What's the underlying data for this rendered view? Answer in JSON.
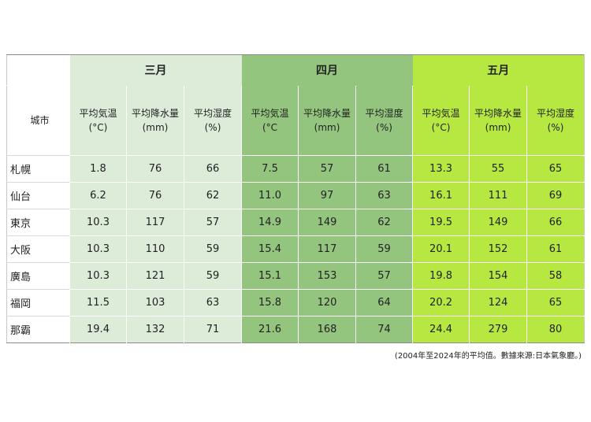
{
  "table": {
    "city_header": "城市",
    "months": [
      {
        "name": "三月",
        "color": "#dcecd9"
      },
      {
        "name": "四月",
        "color": "#94c57e"
      },
      {
        "name": "五月",
        "color": "#b7e842"
      }
    ],
    "column_headers": [
      [
        "平均気温",
        "(°C)"
      ],
      [
        "平均降水量",
        "(mm)"
      ],
      [
        "平均湿度",
        "(%)"
      ],
      [
        "平均気温",
        "(°C"
      ],
      [
        "平均降水量",
        "(mm)"
      ],
      [
        "平均湿度",
        "(%)"
      ],
      [
        "平均気温",
        "(°C)"
      ],
      [
        "平均降水量",
        "(mm)"
      ],
      [
        "平均湿度",
        "(%)"
      ]
    ],
    "rows": [
      {
        "city": "札幌",
        "values": [
          "1.8",
          "76",
          "66",
          "7.5",
          "57",
          "61",
          "13.3",
          "55",
          "65"
        ]
      },
      {
        "city": "仙台",
        "values": [
          "6.2",
          "76",
          "62",
          "11.0",
          "97",
          "63",
          "16.1",
          "111",
          "69"
        ]
      },
      {
        "city": "東京",
        "values": [
          "10.3",
          "117",
          "57",
          "14.9",
          "149",
          "62",
          "19.5",
          "149",
          "66"
        ]
      },
      {
        "city": "大阪",
        "values": [
          "10.3",
          "110",
          "59",
          "15.4",
          "117",
          "59",
          "20.1",
          "152",
          "61"
        ]
      },
      {
        "city": "廣島",
        "values": [
          "10.3",
          "121",
          "59",
          "15.1",
          "153",
          "57",
          "19.8",
          "154",
          "58"
        ]
      },
      {
        "city": "福岡",
        "values": [
          "11.5",
          "103",
          "63",
          "15.8",
          "120",
          "64",
          "20.2",
          "124",
          "65"
        ]
      },
      {
        "city": "那霸",
        "values": [
          "19.4",
          "132",
          "71",
          "21.6",
          "168",
          "74",
          "24.4",
          "279",
          "80"
        ]
      }
    ]
  },
  "footnote": "(2004年至2024年的平均值。數據來源:日本氣象廳。)"
}
